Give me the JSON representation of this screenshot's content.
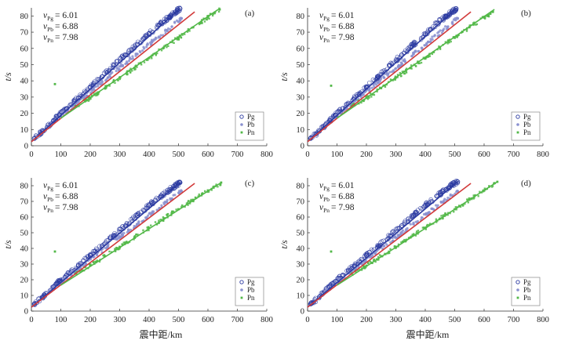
{
  "figure": {
    "xlabel_bottom": "震中距/km",
    "ylabel": "t/s"
  },
  "chart_data": [
    {
      "type": "scatter",
      "panel": "(a)",
      "xlabel": "",
      "ylabel": "t/s",
      "xlim": [
        0,
        800
      ],
      "ylim": [
        0,
        85
      ],
      "xticks": [
        0,
        100,
        200,
        300,
        400,
        500,
        600,
        700,
        800
      ],
      "yticks": [
        0,
        10,
        20,
        30,
        40,
        50,
        60,
        70,
        80
      ],
      "annotations": [
        {
          "symbol": "v",
          "sub": "Pg",
          "text": "= 6.01"
        },
        {
          "symbol": "v",
          "sub": "Pb",
          "text": "= 6.88"
        },
        {
          "symbol": "v",
          "sub": "Pn",
          "text": "= 7.98"
        }
      ],
      "fit_lines": [
        {
          "name": "Pg",
          "x": [
            0,
            505
          ],
          "y": [
            2.5,
            84.5
          ],
          "color": "#2b3aa0"
        },
        {
          "name": "Pb",
          "x": [
            0,
            555
          ],
          "y": [
            2.5,
            82.5
          ],
          "color": "#d23a3a"
        },
        {
          "name": "Pn",
          "x": [
            100,
            635
          ],
          "y": [
            17.0,
            84.0
          ],
          "color": "#52b848"
        }
      ],
      "series": [
        {
          "name": "Pg",
          "color": "#2b3aa0",
          "x": [
            10,
            40,
            75,
            95,
            120,
            160,
            200,
            240,
            280,
            320,
            360,
            400,
            440,
            470,
            490,
            505
          ],
          "y": [
            4.5,
            9.0,
            15.5,
            19.0,
            23.0,
            29.5,
            36.0,
            42.5,
            49.5,
            56.0,
            62.5,
            69.0,
            75.5,
            79.5,
            82.5,
            84.5
          ]
        },
        {
          "name": "Pb",
          "color": "#8a90d0",
          "x": [
            60,
            110,
            160,
            210,
            260,
            310,
            360,
            410,
            460,
            510
          ],
          "y": [
            12.5,
            20.5,
            27.5,
            35.0,
            42.0,
            49.5,
            56.5,
            64.0,
            71.0,
            78.5
          ]
        },
        {
          "name": "Pn",
          "color": "#52b848",
          "x": [
            80,
            150,
            200,
            250,
            300,
            350,
            400,
            450,
            500,
            550,
            600,
            640
          ],
          "y": [
            38.0,
            24.5,
            29.5,
            35.5,
            42.0,
            48.0,
            54.0,
            60.5,
            66.5,
            73.0,
            79.0,
            84.0
          ]
        }
      ],
      "legend": {
        "entries": [
          "Pg",
          "Pb",
          "Pn"
        ],
        "position": "bottom-right"
      }
    },
    {
      "type": "scatter",
      "panel": "(b)",
      "xlabel": "",
      "ylabel": "t/s",
      "xlim": [
        0,
        800
      ],
      "ylim": [
        0,
        85
      ],
      "xticks": [
        0,
        100,
        200,
        300,
        400,
        500,
        600,
        700,
        800
      ],
      "yticks": [
        0,
        10,
        20,
        30,
        40,
        50,
        60,
        70,
        80
      ],
      "annotations": [
        {
          "symbol": "v",
          "sub": "Pg",
          "text": "= 6.01"
        },
        {
          "symbol": "v",
          "sub": "Pb",
          "text": "= 6.88"
        },
        {
          "symbol": "v",
          "sub": "Pn",
          "text": "= 7.98"
        }
      ],
      "fit_lines": [
        {
          "name": "Pg",
          "x": [
            0,
            505
          ],
          "y": [
            2.5,
            84.5
          ],
          "color": "#2b3aa0"
        },
        {
          "name": "Pb",
          "x": [
            0,
            555
          ],
          "y": [
            2.5,
            82.5
          ],
          "color": "#d23a3a"
        },
        {
          "name": "Pn",
          "x": [
            100,
            635
          ],
          "y": [
            17.0,
            84.0
          ],
          "color": "#52b848"
        }
      ],
      "series": [
        {
          "name": "Pg",
          "color": "#2b3aa0",
          "x": [
            10,
            40,
            75,
            95,
            120,
            160,
            200,
            240,
            280,
            320,
            360,
            400,
            440,
            470,
            490,
            505
          ],
          "y": [
            4.5,
            9.0,
            15.5,
            19.0,
            23.0,
            29.5,
            36.0,
            42.5,
            49.5,
            56.0,
            62.5,
            69.0,
            75.5,
            79.5,
            82.5,
            84.5
          ]
        },
        {
          "name": "Pb",
          "color": "#8a90d0",
          "x": [
            60,
            110,
            160,
            210,
            260,
            310,
            360,
            410,
            460,
            510
          ],
          "y": [
            12.5,
            20.5,
            27.5,
            35.0,
            42.0,
            49.5,
            56.5,
            64.0,
            71.0,
            78.5
          ]
        },
        {
          "name": "Pn",
          "color": "#52b848",
          "x": [
            80,
            150,
            200,
            250,
            300,
            350,
            400,
            450,
            500,
            550,
            600,
            630
          ],
          "y": [
            37.0,
            24.5,
            29.5,
            35.5,
            42.0,
            48.0,
            54.0,
            60.5,
            66.5,
            73.0,
            79.0,
            82.5
          ]
        }
      ],
      "legend": {
        "entries": [
          "Pg",
          "Pb",
          "Pn"
        ],
        "position": "bottom-right"
      }
    },
    {
      "type": "scatter",
      "panel": "(c)",
      "xlabel": "震中距/km",
      "ylabel": "t/s",
      "xlim": [
        0,
        800
      ],
      "ylim": [
        0,
        85
      ],
      "xticks": [
        0,
        100,
        200,
        300,
        400,
        500,
        600,
        700,
        800
      ],
      "yticks": [
        0,
        10,
        20,
        30,
        40,
        50,
        60,
        70,
        80
      ],
      "annotations": [
        {
          "symbol": "v",
          "sub": "Pg",
          "text": "= 6.01"
        },
        {
          "symbol": "v",
          "sub": "Pb",
          "text": "= 6.88"
        },
        {
          "symbol": "v",
          "sub": "Pn",
          "text": "= 7.98"
        }
      ],
      "fit_lines": [
        {
          "name": "Pg",
          "x": [
            0,
            505
          ],
          "y": [
            2.5,
            82.0
          ],
          "color": "#2b3aa0"
        },
        {
          "name": "Pb",
          "x": [
            0,
            555
          ],
          "y": [
            2.5,
            81.5
          ],
          "color": "#d23a3a"
        },
        {
          "name": "Pn",
          "x": [
            100,
            645
          ],
          "y": [
            16.5,
            82.0
          ],
          "color": "#52b848"
        }
      ],
      "series": [
        {
          "name": "Pg",
          "color": "#2b3aa0",
          "x": [
            10,
            40,
            75,
            95,
            120,
            160,
            200,
            240,
            280,
            320,
            360,
            400,
            440,
            470,
            490,
            505
          ],
          "y": [
            4.5,
            9.0,
            15.5,
            19.0,
            23.0,
            29.0,
            35.5,
            41.5,
            48.0,
            54.5,
            61.0,
            67.5,
            73.5,
            77.5,
            80.0,
            82.0
          ]
        },
        {
          "name": "Pb",
          "color": "#8a90d0",
          "x": [
            60,
            110,
            160,
            210,
            260,
            310,
            360,
            410,
            460,
            510
          ],
          "y": [
            12.5,
            20.0,
            27.0,
            34.5,
            41.5,
            48.5,
            55.5,
            62.5,
            69.5,
            76.5
          ]
        },
        {
          "name": "Pn",
          "color": "#52b848",
          "x": [
            80,
            150,
            200,
            250,
            300,
            350,
            400,
            450,
            500,
            550,
            600,
            645
          ],
          "y": [
            38.0,
            24.0,
            29.0,
            35.0,
            41.0,
            47.0,
            53.0,
            59.0,
            65.0,
            71.0,
            77.0,
            82.0
          ]
        }
      ],
      "legend": {
        "entries": [
          "Pg",
          "Pb",
          "Pn"
        ],
        "position": "bottom-right"
      }
    },
    {
      "type": "scatter",
      "panel": "(d)",
      "xlabel": "震中距/km",
      "ylabel": "t/s",
      "xlim": [
        0,
        800
      ],
      "ylim": [
        0,
        85
      ],
      "xticks": [
        0,
        100,
        200,
        300,
        400,
        500,
        600,
        700,
        800
      ],
      "yticks": [
        0,
        10,
        20,
        30,
        40,
        50,
        60,
        70,
        80
      ],
      "annotations": [
        {
          "symbol": "v",
          "sub": "Pg",
          "text": "= 6.01"
        },
        {
          "symbol": "v",
          "sub": "Pb",
          "text": "= 6.88"
        },
        {
          "symbol": "v",
          "sub": "Pn",
          "text": "= 7.98"
        }
      ],
      "fit_lines": [
        {
          "name": "Pg",
          "x": [
            0,
            510
          ],
          "y": [
            2.5,
            82.5
          ],
          "color": "#2b3aa0"
        },
        {
          "name": "Pb",
          "x": [
            0,
            555
          ],
          "y": [
            2.5,
            81.5
          ],
          "color": "#d23a3a"
        },
        {
          "name": "Pn",
          "x": [
            100,
            645
          ],
          "y": [
            16.5,
            82.5
          ],
          "color": "#52b848"
        }
      ],
      "series": [
        {
          "name": "Pg",
          "color": "#2b3aa0",
          "x": [
            10,
            40,
            75,
            95,
            120,
            160,
            200,
            240,
            280,
            320,
            360,
            400,
            440,
            470,
            490,
            510
          ],
          "y": [
            4.5,
            9.0,
            15.5,
            19.0,
            23.0,
            29.0,
            35.5,
            41.5,
            48.0,
            54.5,
            61.0,
            67.5,
            73.5,
            77.5,
            80.5,
            82.5
          ]
        },
        {
          "name": "Pb",
          "color": "#8a90d0",
          "x": [
            60,
            110,
            160,
            210,
            260,
            310,
            360,
            410,
            460,
            510
          ],
          "y": [
            12.5,
            20.0,
            27.0,
            34.5,
            41.5,
            48.5,
            55.5,
            62.5,
            69.5,
            76.5
          ]
        },
        {
          "name": "Pn",
          "color": "#52b848",
          "x": [
            80,
            150,
            200,
            250,
            300,
            350,
            400,
            450,
            500,
            550,
            600,
            645
          ],
          "y": [
            38.0,
            24.0,
            29.0,
            35.0,
            41.0,
            47.0,
            53.0,
            59.0,
            65.0,
            71.0,
            77.0,
            82.5
          ]
        }
      ],
      "legend": {
        "entries": [
          "Pg",
          "Pb",
          "Pn"
        ],
        "position": "bottom-right"
      }
    }
  ]
}
